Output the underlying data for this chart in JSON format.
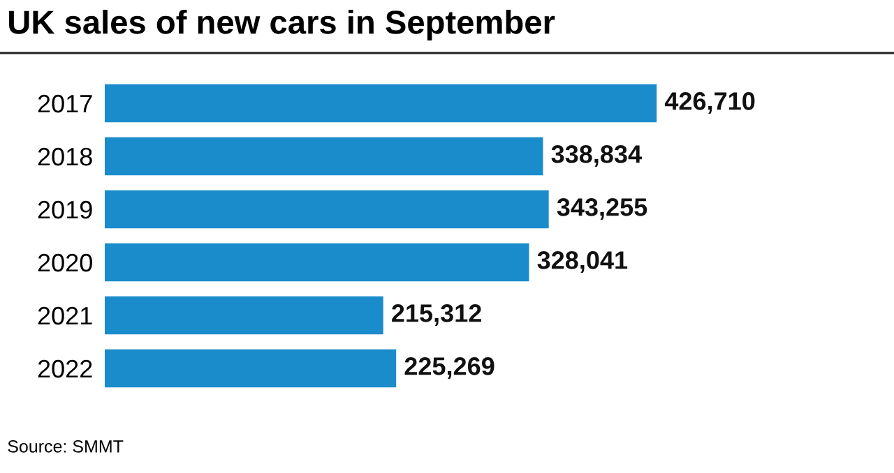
{
  "chart_data": {
    "type": "bar",
    "orientation": "horizontal",
    "title": "UK sales of new cars in September",
    "categories": [
      "2017",
      "2018",
      "2019",
      "2020",
      "2021",
      "2022"
    ],
    "values": [
      426710,
      338834,
      343255,
      328041,
      215312,
      225269
    ],
    "value_labels": [
      "426,710",
      "338,834",
      "343,255",
      "328,041",
      "215,312",
      "225,269"
    ],
    "color": "#1a8ccc",
    "grid": false,
    "legend": false,
    "tick_labels": "y",
    "annotations": [
      "Source: SMMT"
    ]
  }
}
